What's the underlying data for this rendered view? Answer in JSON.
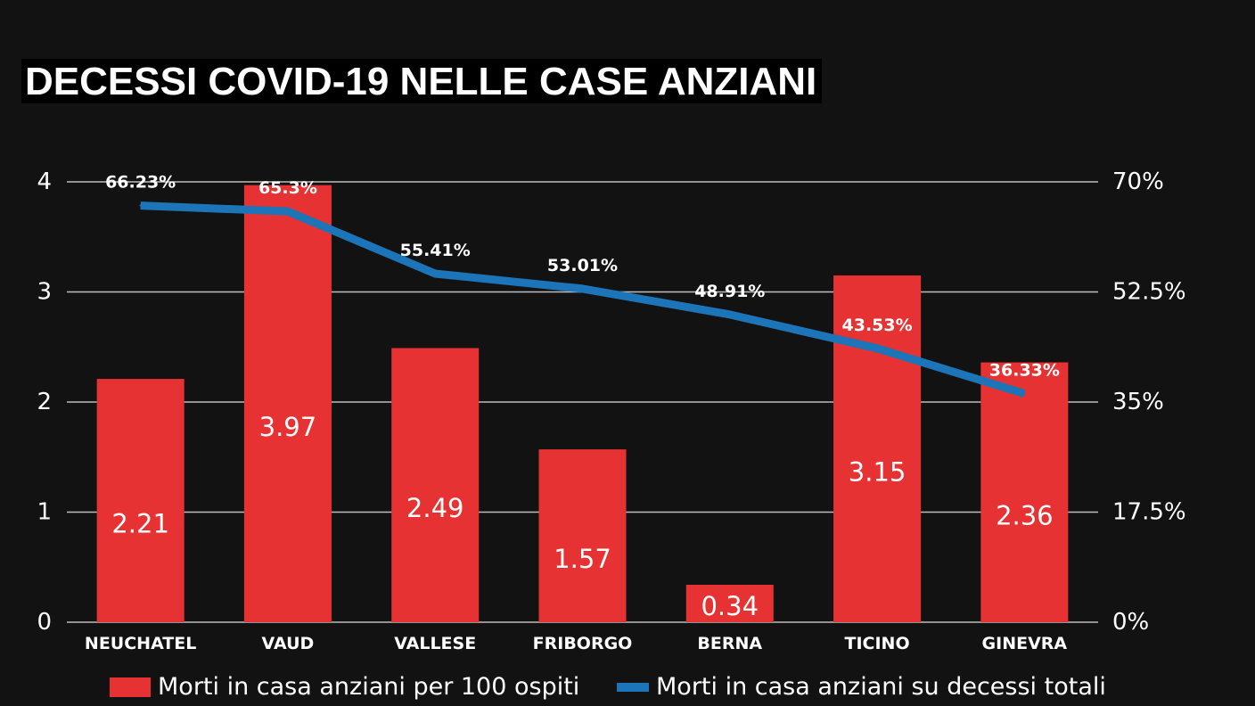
{
  "chart_data": {
    "type": "bar+line",
    "title": "DECESSI COVID-19 NELLE CASE ANZIANI",
    "categories": [
      "NEUCHATEL",
      "VAUD",
      "VALLESE",
      "FRIBORGO",
      "BERNA",
      "TICINO",
      "GINEVRA"
    ],
    "series": [
      {
        "name": "Morti in casa anziani per 100 ospiti",
        "type": "bar",
        "axis": "left",
        "values": [
          2.21,
          3.97,
          2.49,
          1.57,
          0.34,
          3.15,
          2.36
        ],
        "labels": [
          "2.21",
          "3.97",
          "2.49",
          "1.57",
          "0.34",
          "3.15",
          "2.36"
        ],
        "color": "#e63232"
      },
      {
        "name": "Morti in casa anziani su decessi totali",
        "type": "line",
        "axis": "right",
        "values": [
          66.23,
          65.3,
          55.41,
          53.01,
          48.91,
          43.53,
          36.33
        ],
        "labels": [
          "66.23%",
          "65.3%",
          "55.41%",
          "53.01%",
          "48.91%",
          "43.53%",
          "36.33%"
        ],
        "color": "#1b75b8"
      }
    ],
    "y_left": {
      "ylim": [
        0,
        4
      ],
      "ticks": [
        "0",
        "1",
        "2",
        "3",
        "4"
      ]
    },
    "y_right": {
      "ylim": [
        0,
        70
      ],
      "ticks": [
        "0%",
        "17.5%",
        "35%",
        "52.5%",
        "70%"
      ]
    },
    "grid": true,
    "legend": "bottom"
  }
}
